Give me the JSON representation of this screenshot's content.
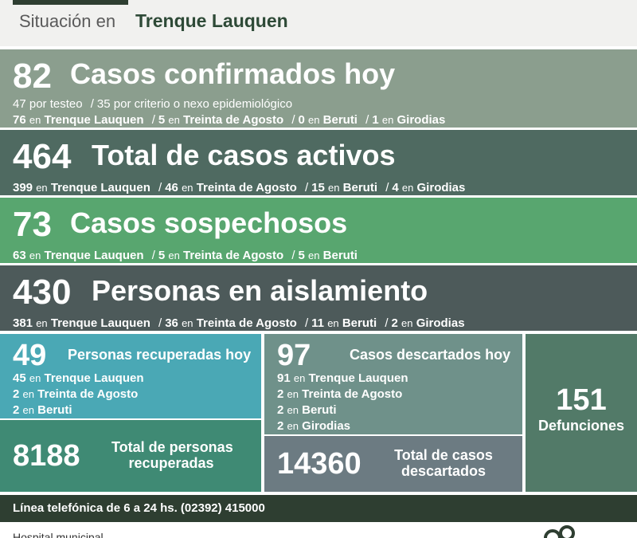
{
  "header": {
    "prefix": "Situación en",
    "city": "Trenque Lauquen"
  },
  "confirmed": {
    "number": "82",
    "title": "Casos confirmados hoy",
    "test_n": "47",
    "test_label": "por testeo",
    "crit_n": "35",
    "crit_label": "por criterio o nexo epidemiológico",
    "tl_n": "76",
    "ta_n": "5",
    "be_n": "0",
    "gi_n": "1"
  },
  "active": {
    "number": "464",
    "title": "Total de casos activos",
    "tl_n": "399",
    "ta_n": "46",
    "be_n": "15",
    "gi_n": "4"
  },
  "suspect": {
    "number": "73",
    "title": "Casos sospechosos",
    "tl_n": "63",
    "ta_n": "5",
    "be_n": "5"
  },
  "isolation": {
    "number": "430",
    "title": "Personas en aislamiento",
    "tl_n": "381",
    "ta_n": "36",
    "be_n": "11",
    "gi_n": "2"
  },
  "recovered_today": {
    "number": "49",
    "title": "Personas recuperadas hoy",
    "tl_n": "45",
    "ta_n": "2",
    "be_n": "2"
  },
  "recovered_total": {
    "number": "8188",
    "label_1": "Total de personas",
    "label_2": "recuperadas"
  },
  "discarded_today": {
    "number": "97",
    "title": "Casos descartados hoy",
    "tl_n": "91",
    "ta_n": "2",
    "be_n": "2",
    "gi_n": "2"
  },
  "discarded_total": {
    "number": "14360",
    "label_1": "Total de casos",
    "label_2": "descartados"
  },
  "deaths": {
    "number": "151",
    "label": "Defunciones"
  },
  "places": {
    "en": "en",
    "sep": "/",
    "tl": "Trenque Lauquen",
    "ta": "Treinta de Agosto",
    "be": "Beruti",
    "gi": "Girodias"
  },
  "phone": {
    "text": "Línea telefónica de 6 a 24 hs. (02392) 415000"
  },
  "footer": {
    "text": "Hospital municipal"
  },
  "colors": {
    "confirmed": "#8b9e8e",
    "active": "#4f6a61",
    "suspect": "#58a66f",
    "isolation": "#4d5a5a",
    "recovered": "#4aa8b5",
    "recovered_total": "#3f8a74",
    "discarded": "#6f918a",
    "discarded_total": "#6c7b82",
    "deaths": "#527a68",
    "dark": "#2e3e31"
  }
}
